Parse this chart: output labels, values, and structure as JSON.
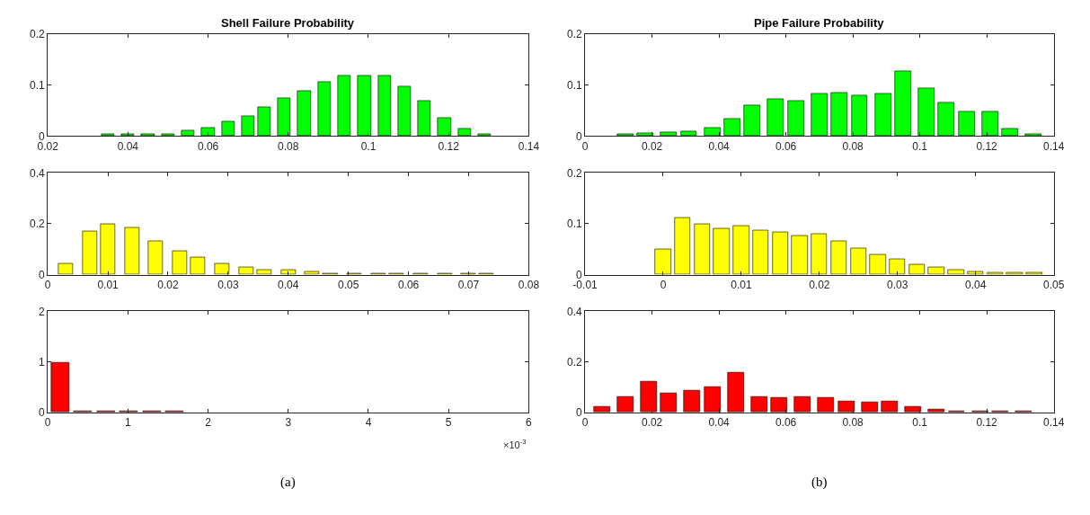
{
  "chart_data": [
    {
      "type": "bar",
      "title": "Shell Failure Probability",
      "color": "#00ff00",
      "x": [
        0.035,
        0.04,
        0.045,
        0.05,
        0.055,
        0.06,
        0.065,
        0.07,
        0.074,
        0.079,
        0.084,
        0.089,
        0.094,
        0.099,
        0.104,
        0.109,
        0.114,
        0.119,
        0.124,
        0.129
      ],
      "values": [
        0.003,
        0.003,
        0.003,
        0.004,
        0.011,
        0.017,
        0.028,
        0.039,
        0.057,
        0.074,
        0.089,
        0.107,
        0.119,
        0.119,
        0.119,
        0.098,
        0.069,
        0.035,
        0.015,
        0.004
      ],
      "xlim": [
        0.02,
        0.14
      ],
      "xticks": [
        0.02,
        0.04,
        0.06,
        0.08,
        0.1,
        0.12,
        0.14
      ],
      "ylim": [
        0,
        0.2
      ],
      "yticks": [
        0,
        0.1,
        0.2
      ]
    },
    {
      "type": "bar",
      "title": "Pipe Failure Probability",
      "color": "#00ff00",
      "x": [
        0.012,
        0.018,
        0.025,
        0.031,
        0.038,
        0.044,
        0.05,
        0.057,
        0.063,
        0.07,
        0.076,
        0.082,
        0.089,
        0.095,
        0.102,
        0.108,
        0.114,
        0.121,
        0.127,
        0.134
      ],
      "values": [
        0.003,
        0.006,
        0.008,
        0.01,
        0.017,
        0.034,
        0.061,
        0.072,
        0.07,
        0.083,
        0.085,
        0.079,
        0.083,
        0.127,
        0.094,
        0.065,
        0.048,
        0.048,
        0.015,
        0.003
      ],
      "xlim": [
        0,
        0.14
      ],
      "xticks": [
        0,
        0.02,
        0.04,
        0.06,
        0.08,
        0.1,
        0.12,
        0.14
      ],
      "ylim": [
        0,
        0.2
      ],
      "yticks": [
        0,
        0.1,
        0.2
      ]
    },
    {
      "type": "bar",
      "color": "#ffff00",
      "x": [
        0.003,
        0.007,
        0.01,
        0.014,
        0.018,
        0.022,
        0.025,
        0.029,
        0.033,
        0.036,
        0.04,
        0.044,
        0.047,
        0.051,
        0.055,
        0.058,
        0.062,
        0.066,
        0.07,
        0.073
      ],
      "values": [
        0.043,
        0.169,
        0.2,
        0.184,
        0.131,
        0.091,
        0.069,
        0.043,
        0.029,
        0.02,
        0.017,
        0.012,
        0.003,
        0.003,
        0.003,
        0.003,
        0.003,
        0.003,
        0.003,
        0.003
      ],
      "xlim": [
        0,
        0.08
      ],
      "xticks": [
        0,
        0.01,
        0.02,
        0.03,
        0.04,
        0.05,
        0.06,
        0.07,
        0.08
      ],
      "ylim": [
        0,
        0.4
      ],
      "yticks": [
        0,
        0.2,
        0.4
      ]
    },
    {
      "type": "bar",
      "color": "#ffff00",
      "x": [
        0.0,
        0.0025,
        0.005,
        0.0075,
        0.01,
        0.0125,
        0.015,
        0.0175,
        0.02,
        0.0225,
        0.025,
        0.0275,
        0.03,
        0.0325,
        0.035,
        0.0375,
        0.04,
        0.0425,
        0.045,
        0.0475
      ],
      "values": [
        0.05,
        0.111,
        0.1,
        0.09,
        0.096,
        0.087,
        0.083,
        0.077,
        0.079,
        0.066,
        0.052,
        0.039,
        0.03,
        0.019,
        0.015,
        0.009,
        0.006,
        0.004,
        0.003,
        0.003
      ],
      "xlim": [
        -0.01,
        0.05
      ],
      "xticks": [
        -0.01,
        0,
        0.01,
        0.02,
        0.03,
        0.04,
        0.05
      ],
      "ylim": [
        0,
        0.2
      ],
      "yticks": [
        0,
        0.1,
        0.2
      ]
    },
    {
      "type": "bar",
      "color": "#ff0000",
      "x": [
        0.16,
        0.44,
        0.73,
        1.01,
        1.3,
        1.58
      ],
      "values": [
        0.99,
        0.02,
        0.02,
        0.02,
        0.02,
        0.02
      ],
      "xlim": [
        0,
        6
      ],
      "xticks": [
        0,
        1,
        2,
        3,
        4,
        5,
        6
      ],
      "ylim": [
        0,
        2
      ],
      "yticks": [
        0,
        1,
        2
      ],
      "annotations": [
        "×10$^{-3}$",
        "(a)"
      ]
    },
    {
      "type": "bar",
      "color": "#ff0000",
      "x": [
        0.005,
        0.012,
        0.019,
        0.025,
        0.032,
        0.038,
        0.045,
        0.052,
        0.058,
        0.065,
        0.072,
        0.078,
        0.085,
        0.091,
        0.098,
        0.105,
        0.111,
        0.118,
        0.124,
        0.131
      ],
      "values": [
        0.023,
        0.062,
        0.123,
        0.074,
        0.088,
        0.101,
        0.158,
        0.062,
        0.058,
        0.062,
        0.058,
        0.044,
        0.04,
        0.044,
        0.023,
        0.011,
        0.003,
        0.003,
        0.003,
        0.003
      ],
      "xlim": [
        0,
        0.14
      ],
      "xticks": [
        0,
        0.02,
        0.04,
        0.06,
        0.08,
        0.1,
        0.12,
        0.14
      ],
      "ylim": [
        0,
        0.4
      ],
      "yticks": [
        0,
        0.2,
        0.4
      ],
      "annotations": [
        "(b)"
      ]
    }
  ]
}
